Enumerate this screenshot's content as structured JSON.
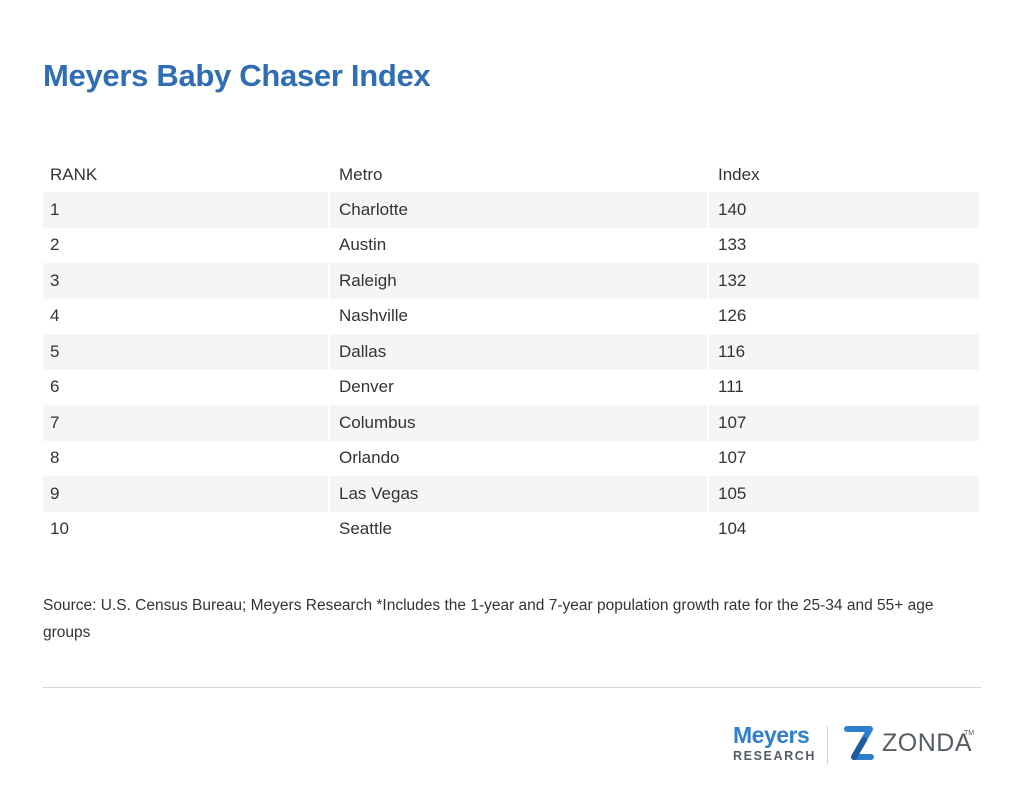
{
  "title": "Meyers Baby Chaser Index",
  "chart_data": {
    "type": "table",
    "columns": [
      "RANK",
      "Metro",
      "Index"
    ],
    "rows": [
      {
        "rank": "1",
        "metro": "Charlotte",
        "index": "140"
      },
      {
        "rank": "2",
        "metro": "Austin",
        "index": "133"
      },
      {
        "rank": "3",
        "metro": "Raleigh",
        "index": "132"
      },
      {
        "rank": "4",
        "metro": "Nashville",
        "index": "126"
      },
      {
        "rank": "5",
        "metro": "Dallas",
        "index": "116"
      },
      {
        "rank": "6",
        "metro": "Denver",
        "index": "111"
      },
      {
        "rank": "7",
        "metro": "Columbus",
        "index": "107"
      },
      {
        "rank": "8",
        "metro": "Orlando",
        "index": "107"
      },
      {
        "rank": "9",
        "metro": "Las Vegas",
        "index": "105"
      },
      {
        "rank": "10",
        "metro": "Seattle",
        "index": "104"
      }
    ],
    "title": "Meyers Baby Chaser Index"
  },
  "source_note": "Source: U.S. Census Bureau; Meyers Research *Includes the 1-year and 7-year population growth rate for the 25-34 and 55+ age groups",
  "logos": {
    "meyers_name": "Meyers",
    "meyers_sub": "RESEARCH",
    "zonda_word": "ZONDA",
    "zonda_tm": "TM"
  },
  "colors": {
    "title": "#2f6db5",
    "row_stripe": "#f5f5f5",
    "meyers_blue": "#2f7fd0",
    "zonda_gray": "#555c63"
  }
}
